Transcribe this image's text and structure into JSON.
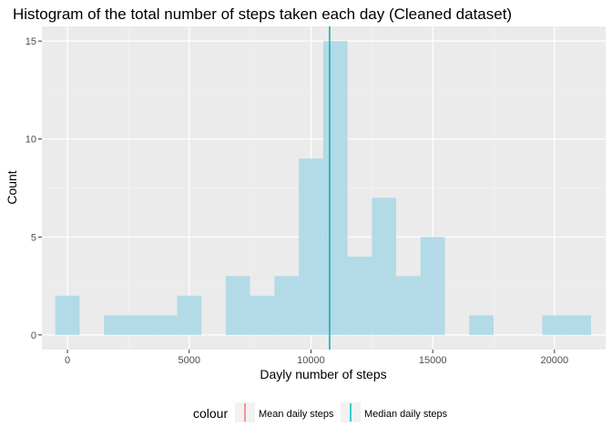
{
  "chart_data": {
    "type": "bar",
    "title": "Histogram of the total number of steps taken each day (Cleaned dataset)",
    "xlabel": "Dayly number of steps",
    "ylabel": "Count",
    "xlim": [
      -1050,
      22100
    ],
    "ylim": [
      -0.75,
      15.75
    ],
    "x_ticks": [
      0,
      5000,
      10000,
      15000,
      20000
    ],
    "y_ticks": [
      0,
      5,
      10,
      15
    ],
    "bin_width": 1000,
    "bins": [
      {
        "x0": -500,
        "x1": 500,
        "count": 2
      },
      {
        "x0": 500,
        "x1": 1500,
        "count": 0
      },
      {
        "x0": 1500,
        "x1": 2500,
        "count": 1
      },
      {
        "x0": 2500,
        "x1": 3500,
        "count": 1
      },
      {
        "x0": 3500,
        "x1": 4500,
        "count": 1
      },
      {
        "x0": 4500,
        "x1": 5500,
        "count": 2
      },
      {
        "x0": 5500,
        "x1": 6500,
        "count": 0
      },
      {
        "x0": 6500,
        "x1": 7500,
        "count": 3
      },
      {
        "x0": 7500,
        "x1": 8500,
        "count": 2
      },
      {
        "x0": 8500,
        "x1": 9500,
        "count": 3
      },
      {
        "x0": 9500,
        "x1": 10500,
        "count": 9
      },
      {
        "x0": 10500,
        "x1": 11500,
        "count": 15
      },
      {
        "x0": 11500,
        "x1": 12500,
        "count": 4
      },
      {
        "x0": 12500,
        "x1": 13500,
        "count": 7
      },
      {
        "x0": 13500,
        "x1": 14500,
        "count": 3
      },
      {
        "x0": 14500,
        "x1": 15500,
        "count": 5
      },
      {
        "x0": 15500,
        "x1": 16500,
        "count": 0
      },
      {
        "x0": 16500,
        "x1": 17500,
        "count": 1
      },
      {
        "x0": 17500,
        "x1": 18500,
        "count": 0
      },
      {
        "x0": 18500,
        "x1": 19500,
        "count": 0
      },
      {
        "x0": 19500,
        "x1": 20500,
        "count": 1
      },
      {
        "x0": 20500,
        "x1": 21500,
        "count": 1
      }
    ],
    "reference_lines": [
      {
        "name": "Mean daily steps",
        "value": 10766,
        "color": "#F8766D"
      },
      {
        "name": "Median daily steps",
        "value": 10766,
        "color": "#00BFC4"
      }
    ],
    "bar_color": "#ADD8E6",
    "panel_color": "#EBEBEB",
    "grid": true,
    "legend": {
      "title": "colour",
      "placement": "bottom"
    }
  }
}
